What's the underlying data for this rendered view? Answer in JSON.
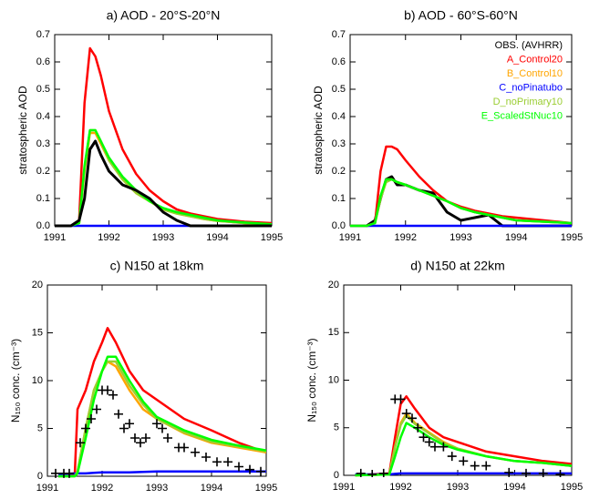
{
  "chart_data": [
    {
      "type": "line",
      "title": "a) AOD - 20°S-20°N",
      "y_label": "stratospheric AOD",
      "x": [
        1991,
        1991.3,
        1991.45,
        1991.55,
        1991.65,
        1991.75,
        1991.85,
        1992,
        1992.25,
        1992.5,
        1992.75,
        1993,
        1993.25,
        1993.5,
        1993.75,
        1994,
        1994.5,
        1995
      ],
      "xlim": [
        1991,
        1995
      ],
      "xticks": [
        1991,
        1992,
        1993,
        1994,
        1995
      ],
      "ylim": [
        0,
        0.7
      ],
      "yticks": [
        {
          "value": 0,
          "label": "0.0"
        },
        0.1,
        0.2,
        0.3,
        0.4,
        0.5,
        0.6,
        0.7
      ],
      "series": [
        {
          "color": "#ff0000",
          "values": [
            0,
            0,
            0.02,
            0.45,
            0.65,
            0.62,
            0.55,
            0.42,
            0.28,
            0.19,
            0.13,
            0.09,
            0.06,
            0.045,
            0.035,
            0.025,
            0.015,
            0.01
          ]
        },
        {
          "color": "#ffa500",
          "values": [
            0,
            0,
            0.01,
            0.2,
            0.34,
            0.34,
            0.3,
            0.24,
            0.17,
            0.12,
            0.09,
            0.06,
            0.045,
            0.035,
            0.025,
            0.018,
            0.01,
            0.005
          ]
        },
        {
          "color": "#0000ff",
          "values": [
            0,
            0,
            0,
            0,
            0,
            0,
            0,
            0,
            0,
            0,
            0,
            0,
            0,
            0,
            0,
            0,
            0,
            0
          ]
        },
        {
          "color": "#9acd32",
          "values": [
            0,
            0,
            0.01,
            0.21,
            0.35,
            0.35,
            0.31,
            0.24,
            0.17,
            0.12,
            0.09,
            0.06,
            0.045,
            0.035,
            0.025,
            0.018,
            0.01,
            0.005
          ]
        },
        {
          "color": "#00ff00",
          "values": [
            0,
            0,
            0.01,
            0.22,
            0.35,
            0.35,
            0.31,
            0.25,
            0.18,
            0.13,
            0.09,
            0.065,
            0.05,
            0.04,
            0.03,
            0.02,
            0.012,
            0.006
          ]
        },
        {
          "color": "#000000",
          "values": [
            0,
            0,
            0.02,
            0.1,
            0.28,
            0.31,
            0.26,
            0.2,
            0.15,
            0.13,
            0.1,
            0.05,
            0.02,
            0,
            0,
            0,
            0,
            0
          ]
        }
      ]
    },
    {
      "type": "line",
      "title": "b) AOD - 60°S-60°N",
      "y_label": "stratospheric AOD",
      "legend": "top-right",
      "x": [
        1991,
        1991.3,
        1991.45,
        1991.55,
        1991.65,
        1991.75,
        1991.85,
        1992,
        1992.25,
        1992.5,
        1992.75,
        1993,
        1993.25,
        1993.5,
        1993.75,
        1994,
        1994.5,
        1995
      ],
      "xlim": [
        1991,
        1995
      ],
      "xticks": [
        1991,
        1992,
        1993,
        1994,
        1995
      ],
      "ylim": [
        0,
        0.7
      ],
      "yticks": [
        {
          "value": 0,
          "label": "0.0"
        },
        0.1,
        0.2,
        0.3,
        0.4,
        0.5,
        0.6,
        0.7
      ],
      "series": [
        {
          "name": "OBS. (AVHRR)",
          "color": "#000000",
          "values": [
            0,
            0,
            0.02,
            0.1,
            0.17,
            0.18,
            0.15,
            0.15,
            0.13,
            0.12,
            0.05,
            0.02,
            0.03,
            0.04,
            0,
            0,
            0,
            0
          ]
        },
        {
          "name": "A_Control20",
          "color": "#ff0000",
          "values": [
            0,
            0,
            0.01,
            0.2,
            0.29,
            0.29,
            0.28,
            0.24,
            0.18,
            0.13,
            0.09,
            0.07,
            0.055,
            0.045,
            0.035,
            0.03,
            0.02,
            0.01
          ]
        },
        {
          "name": "B_Control10",
          "color": "#ffa500",
          "values": [
            0,
            0,
            0.01,
            0.1,
            0.17,
            0.17,
            0.16,
            0.15,
            0.13,
            0.11,
            0.09,
            0.065,
            0.05,
            0.04,
            0.03,
            0.02,
            0.015,
            0.01
          ]
        },
        {
          "name": "C_noPinatubo",
          "color": "#0000ff",
          "values": [
            0,
            0,
            0,
            0,
            0,
            0,
            0,
            0,
            0,
            0,
            0,
            0,
            0,
            0,
            0,
            0,
            0,
            0
          ]
        },
        {
          "name": "D_noPrimary10",
          "color": "#9acd32",
          "values": [
            0,
            0,
            0.01,
            0.1,
            0.16,
            0.17,
            0.16,
            0.15,
            0.13,
            0.11,
            0.09,
            0.065,
            0.05,
            0.04,
            0.03,
            0.02,
            0.015,
            0.01
          ]
        },
        {
          "name": "E_ScaledStNuc10",
          "color": "#00ff00",
          "values": [
            0,
            0,
            0.01,
            0.11,
            0.17,
            0.17,
            0.16,
            0.15,
            0.13,
            0.11,
            0.09,
            0.065,
            0.05,
            0.04,
            0.03,
            0.02,
            0.015,
            0.01
          ]
        }
      ]
    },
    {
      "type": "line",
      "title": "c) N150 at 18km",
      "y_label": "N₁₅₀ conc. (cm⁻³)",
      "x": [
        1991.2,
        1991.5,
        1991.55,
        1991.7,
        1991.85,
        1992,
        1992.1,
        1992.25,
        1992.5,
        1992.75,
        1993,
        1993.5,
        1994,
        1994.5,
        1995
      ],
      "xlim": [
        1991,
        1995
      ],
      "xticks": [
        1991,
        1992,
        1993,
        1994,
        1995
      ],
      "ylim": [
        0,
        20
      ],
      "yticks": [
        0,
        5,
        10,
        15,
        20
      ],
      "series": [
        {
          "color": "#ff0000",
          "values": [
            0,
            0.2,
            7,
            9,
            12,
            14,
            15.5,
            14,
            11,
            9,
            8,
            6,
            4.8,
            3.5,
            2.5
          ]
        },
        {
          "color": "#ffa500",
          "values": [
            0,
            0,
            0.5,
            5,
            9,
            11,
            12,
            11.5,
            9,
            7,
            6,
            4.5,
            3.5,
            3,
            2.5
          ]
        },
        {
          "color": "#0000ff",
          "values": [
            0.2,
            0.3,
            0.3,
            0.3,
            0.35,
            0.4,
            0.4,
            0.4,
            0.4,
            0.45,
            0.5,
            0.5,
            0.5,
            0.5,
            0.5
          ]
        },
        {
          "color": "#9acd32",
          "values": [
            0,
            0,
            0.5,
            5,
            9,
            11,
            12,
            12,
            9.5,
            7.5,
            6,
            4.6,
            3.6,
            3.1,
            2.6
          ]
        },
        {
          "color": "#00ff00",
          "values": [
            0,
            0,
            0.3,
            4,
            8,
            11,
            12.5,
            12.5,
            10,
            7.8,
            6.2,
            4.8,
            3.8,
            3.2,
            2.7
          ]
        },
        {
          "color": "#000000",
          "mode": "markers",
          "x": [
            1991.15,
            1991.3,
            1991.4,
            1991.6,
            1991.7,
            1991.8,
            1991.9,
            1992,
            1992.1,
            1992.2,
            1992.3,
            1992.4,
            1992.5,
            1992.6,
            1992.7,
            1992.8,
            1993,
            1993.1,
            1993.2,
            1993.4,
            1993.5,
            1993.7,
            1993.9,
            1994.1,
            1994.3,
            1994.5,
            1994.7,
            1994.9
          ],
          "values": [
            0.3,
            0.3,
            0.3,
            3.5,
            5,
            6,
            7,
            9,
            9,
            8.5,
            6.5,
            5,
            5.5,
            4,
            3.5,
            4,
            5.5,
            5,
            4,
            3,
            3,
            2.5,
            2,
            1.5,
            1.5,
            1,
            0.7,
            0.5
          ]
        }
      ]
    },
    {
      "type": "line",
      "title": "d) N150 at 22km",
      "y_label": "N₁₅₀ conc. (cm⁻³)",
      "x": [
        1991.2,
        1991.8,
        1991.9,
        1992,
        1992.1,
        1992.25,
        1992.5,
        1992.75,
        1993,
        1993.5,
        1994,
        1994.5,
        1995
      ],
      "xlim": [
        1991,
        1995
      ],
      "xticks": [
        1991,
        1992,
        1993,
        1994,
        1995
      ],
      "ylim": [
        0,
        20
      ],
      "yticks": [
        0,
        5,
        10,
        15,
        20
      ],
      "series": [
        {
          "color": "#ff0000",
          "values": [
            0,
            0.2,
            4,
            7.5,
            8.3,
            7,
            5,
            4,
            3.5,
            2.5,
            2,
            1.5,
            1.2
          ]
        },
        {
          "color": "#ffa500",
          "values": [
            0,
            0.1,
            3,
            5.5,
            6.5,
            5.5,
            4.5,
            3.5,
            2.8,
            2,
            1.5,
            1.3,
            1
          ]
        },
        {
          "color": "#0000ff",
          "values": [
            0.1,
            0.1,
            0.15,
            0.2,
            0.2,
            0.2,
            0.2,
            0.2,
            0.2,
            0.2,
            0.2,
            0.2,
            0.2
          ]
        },
        {
          "color": "#9acd32",
          "values": [
            0,
            0.1,
            3,
            5.3,
            6.3,
            5.4,
            4.4,
            3.4,
            2.8,
            2,
            1.5,
            1.3,
            1
          ]
        },
        {
          "color": "#00ff00",
          "values": [
            0,
            0.1,
            2,
            4,
            5.5,
            5,
            4,
            3.2,
            2.7,
            2,
            1.5,
            1.3,
            1
          ]
        },
        {
          "color": "#000000",
          "mode": "markers",
          "x": [
            1991.3,
            1991.5,
            1991.7,
            1991.9,
            1992,
            1992.1,
            1992.2,
            1992.3,
            1992.4,
            1992.5,
            1992.6,
            1992.75,
            1992.9,
            1993.1,
            1993.3,
            1993.5,
            1993.9,
            1994.2,
            1994.5,
            1994.8
          ],
          "values": [
            0.2,
            0.1,
            0.2,
            8,
            8,
            6.5,
            6,
            5,
            4,
            3.5,
            3,
            3,
            2,
            1.5,
            1,
            1,
            0.3,
            0.2,
            0.2,
            0.1
          ]
        }
      ]
    }
  ]
}
